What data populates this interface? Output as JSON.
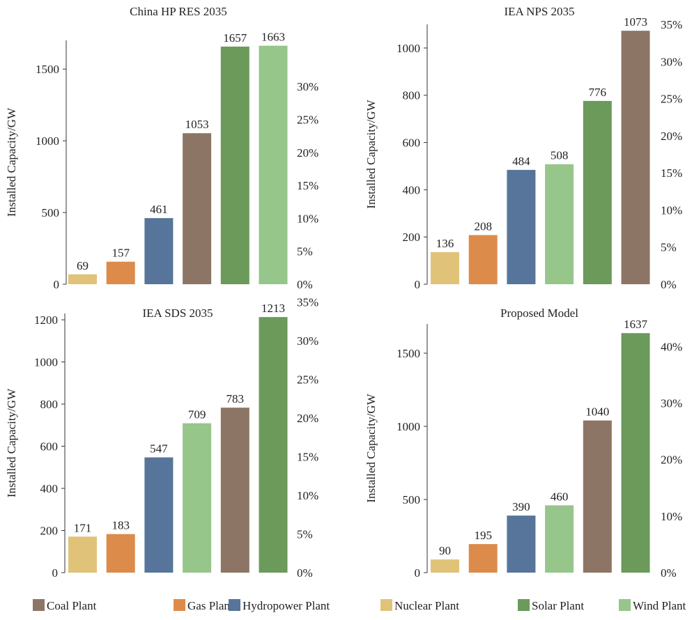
{
  "chart_data": [
    {
      "type": "bar",
      "title": "China HP RES 2035",
      "ylabel": "Installed Capacity/GW",
      "ylim": [
        0,
        1700
      ],
      "yticks": [
        0,
        500,
        1000,
        1500
      ],
      "y2lim": [
        0,
        37
      ],
      "y2ticks": [
        "0%",
        "5%",
        "10%",
        "15%",
        "20%",
        "25%",
        "30%"
      ],
      "categories": [
        "Nuclear Plant",
        "Gas Plant",
        "Hydropower Plant",
        "Coal Plant",
        "Solar Plant",
        "Wind Plant"
      ],
      "values": [
        69,
        157,
        461,
        1053,
        1657,
        1663
      ]
    },
    {
      "type": "bar",
      "title": "IEA NPS 2035",
      "ylabel": "Installed Capacity/GW",
      "ylim": [
        0,
        1100
      ],
      "yticks": [
        0,
        200,
        400,
        600,
        800,
        1000
      ],
      "y2lim": [
        0,
        35
      ],
      "y2ticks": [
        "0%",
        "5%",
        "10%",
        "15%",
        "20%",
        "25%",
        "30%",
        "35%"
      ],
      "categories": [
        "Nuclear Plant",
        "Gas Plant",
        "Hydropower Plant",
        "Wind Plant",
        "Solar Plant",
        "Coal Plant"
      ],
      "values": [
        136,
        208,
        484,
        508,
        776,
        1073
      ]
    },
    {
      "type": "bar",
      "title": "IEA SDS 2035",
      "ylabel": "Installed Capacity/GW",
      "ylim": [
        0,
        1230
      ],
      "yticks": [
        0,
        200,
        400,
        600,
        800,
        1000,
        1200
      ],
      "y2lim": [
        0,
        33.5
      ],
      "y2ticks": [
        "0%",
        "5%",
        "10%",
        "15%",
        "20%",
        "25%",
        "30%",
        "35%"
      ],
      "categories": [
        "Nuclear Plant",
        "Gas Plant",
        "Hydropower Plant",
        "Wind Plant",
        "Coal Plant",
        "Solar Plant"
      ],
      "values": [
        171,
        183,
        547,
        709,
        783,
        1213
      ]
    },
    {
      "type": "bar",
      "title": "Proposed Model",
      "ylabel": "Installed Capacity/GW",
      "ylim": [
        0,
        1700
      ],
      "yticks": [
        0,
        500,
        1000,
        1500
      ],
      "y2lim": [
        0,
        44
      ],
      "y2ticks": [
        "0%",
        "10%",
        "20%",
        "30%",
        "40%"
      ],
      "categories": [
        "Nuclear Plant",
        "Gas Plant",
        "Hydropower Plant",
        "Wind Plant",
        "Coal Plant",
        "Solar Plant"
      ],
      "values": [
        90,
        195,
        390,
        460,
        1040,
        1637
      ]
    }
  ],
  "legend": [
    {
      "label": "Coal Plant",
      "color": "#8d7566"
    },
    {
      "label": "Gas Plant",
      "color": "#dc8b4b"
    },
    {
      "label": "Hydropower Plant",
      "color": "#57759a"
    },
    {
      "label": "Nuclear Plant",
      "color": "#e0c378"
    },
    {
      "label": "Solar Plant",
      "color": "#6b9a5b"
    },
    {
      "label": "Wind Plant",
      "color": "#96c68a"
    }
  ]
}
